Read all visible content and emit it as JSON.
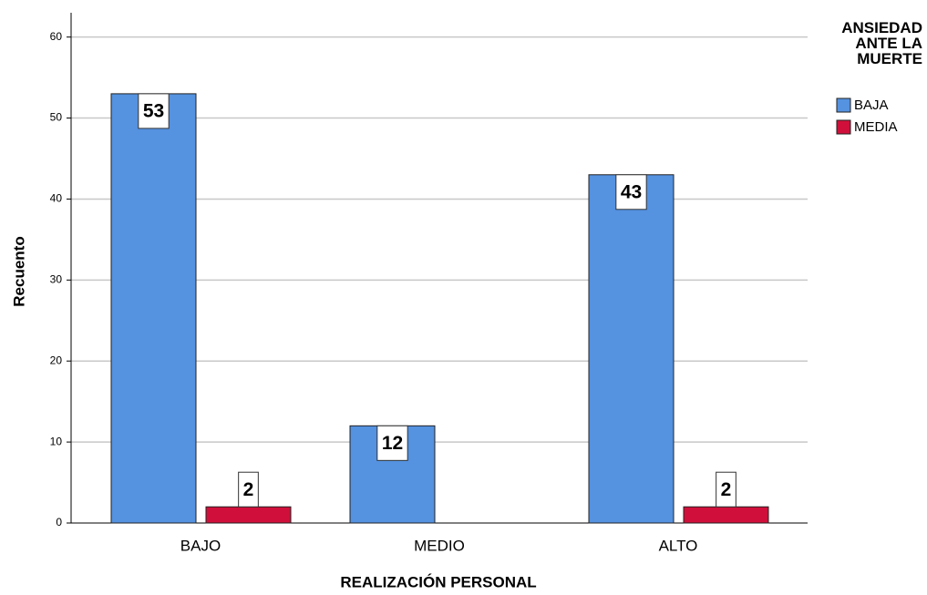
{
  "chart_data": {
    "type": "bar",
    "x_label": "REALIZACIÓN PERSONAL",
    "y_label": "Recuento",
    "legend_title": "ANSIEDAD ANTE LA MUERTE",
    "categories": [
      "BAJO",
      "MEDIO",
      "ALTO"
    ],
    "series": [
      {
        "name": "BAJA",
        "color": "#5592e0",
        "values": [
          53,
          12,
          43
        ]
      },
      {
        "name": "MEDIA",
        "color": "#d0103a",
        "values": [
          2,
          null,
          2
        ]
      }
    ],
    "ylim": [
      0,
      63
    ],
    "yticks": [
      0,
      10,
      20,
      30,
      40,
      50,
      60
    ],
    "grid": true,
    "legend": "right"
  }
}
